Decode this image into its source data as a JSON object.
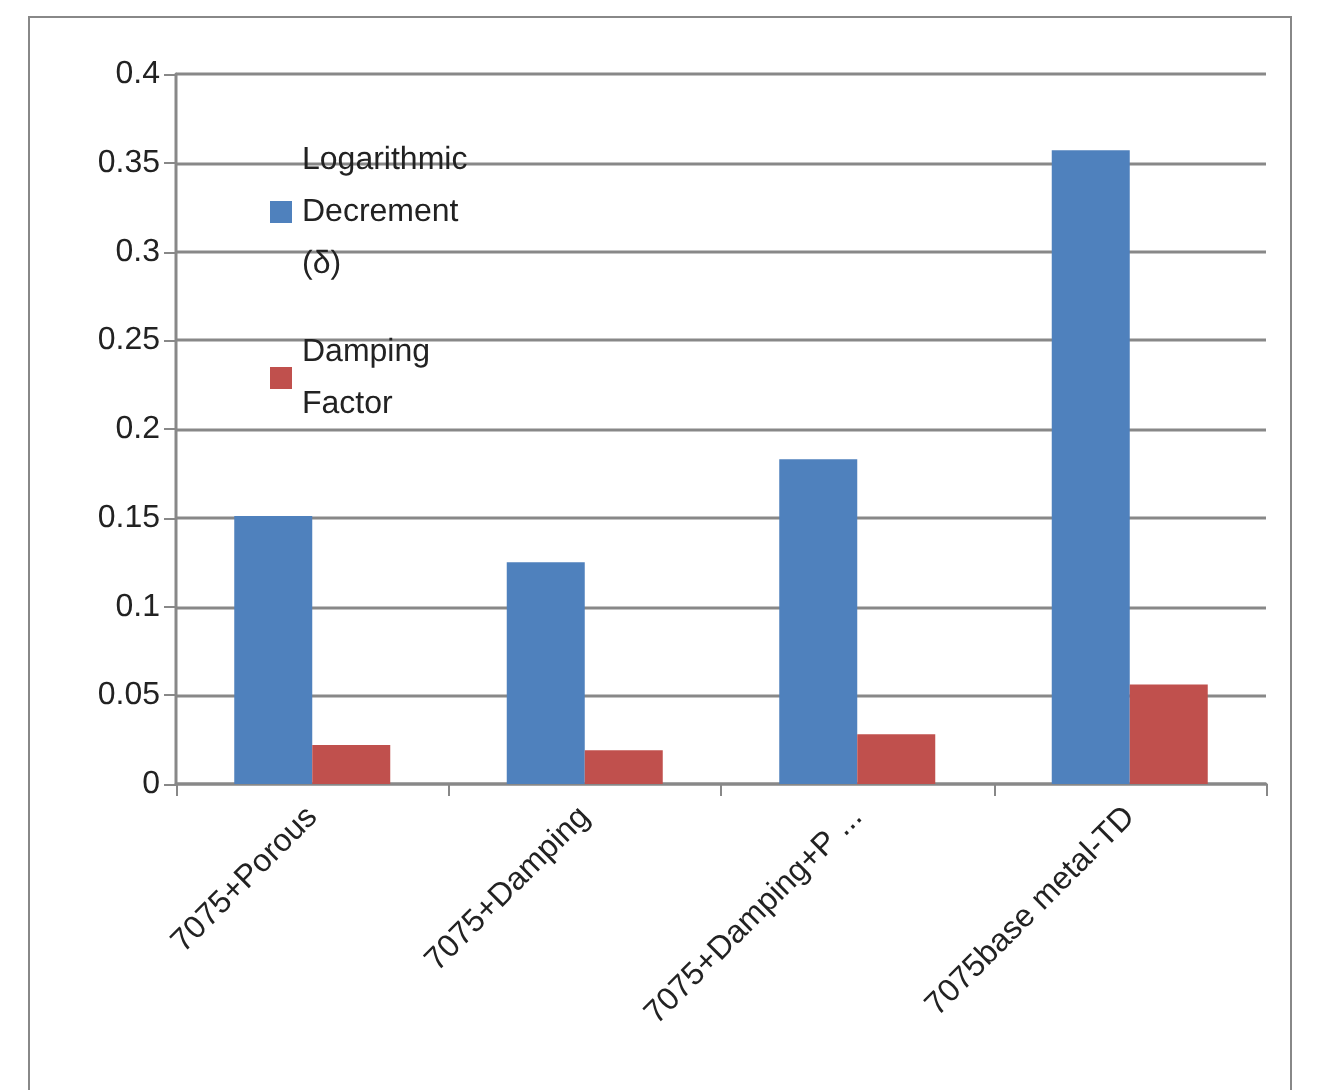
{
  "chart_data": {
    "type": "bar",
    "categories": [
      "7075+Porous",
      "7075+Damping",
      "7075+Damping+P ...",
      "7075base metal-TD"
    ],
    "series": [
      {
        "name": "Logarithmic Decrement (δ)",
        "color": "#4f81bd",
        "values": [
          0.151,
          0.125,
          0.183,
          0.357
        ]
      },
      {
        "name": "Damping Factor",
        "color": "#c0504d",
        "values": [
          0.022,
          0.019,
          0.028,
          0.056
        ]
      }
    ],
    "ylim": [
      0,
      0.4
    ],
    "yticks": [
      0,
      0.05,
      0.1,
      0.15,
      0.2,
      0.25,
      0.3,
      0.35,
      0.4
    ],
    "grid": "y",
    "legend": "top left"
  }
}
